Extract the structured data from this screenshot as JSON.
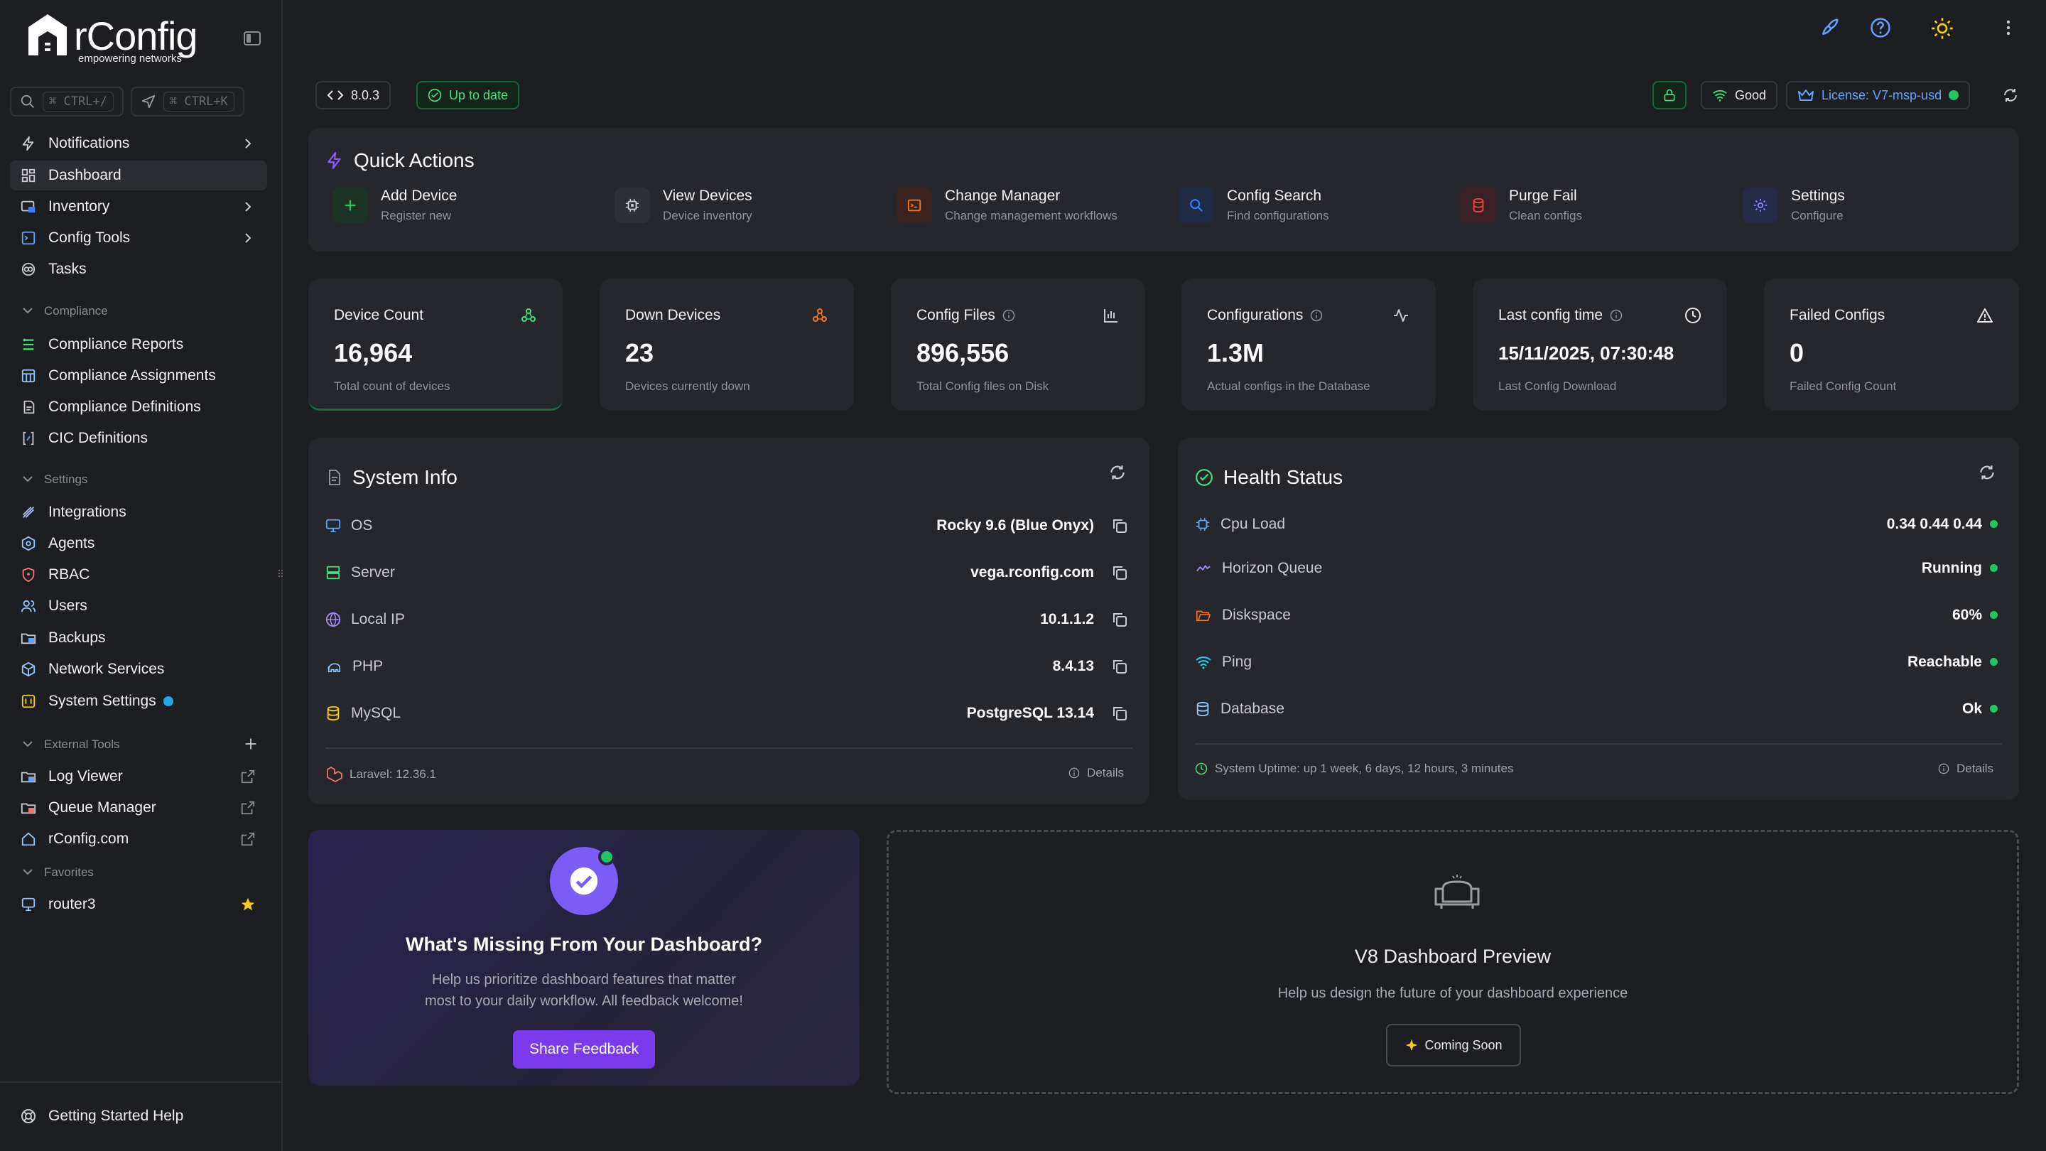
{
  "brand": {
    "name": "rConfig",
    "tagline": "empowering networks"
  },
  "search": {
    "shortcut1": "⌘ CTRL+/",
    "shortcut2": "⌘ CTRL+K"
  },
  "sidebar": {
    "items": [
      {
        "label": "Notifications",
        "icon": "bolt-icon"
      },
      {
        "label": "Dashboard",
        "icon": "grid-icon"
      },
      {
        "label": "Inventory",
        "icon": "server-icon"
      },
      {
        "label": "Config Tools",
        "icon": "terminal-icon"
      },
      {
        "label": "Tasks",
        "icon": "tasks-icon"
      }
    ],
    "compliance_header": "Compliance",
    "compliance": [
      {
        "label": "Compliance Reports"
      },
      {
        "label": "Compliance Assignments"
      },
      {
        "label": "Compliance Definitions"
      },
      {
        "label": "CIC Definitions"
      }
    ],
    "settings_header": "Settings",
    "settings": [
      {
        "label": "Integrations"
      },
      {
        "label": "Agents"
      },
      {
        "label": "RBAC"
      },
      {
        "label": "Users"
      },
      {
        "label": "Backups"
      },
      {
        "label": "Network Services"
      },
      {
        "label": "System Settings"
      }
    ],
    "external_header": "External Tools",
    "external": [
      {
        "label": "Log Viewer"
      },
      {
        "label": "Queue Manager"
      },
      {
        "label": "rConfig.com"
      }
    ],
    "favorites_header": "Favorites",
    "favorites": [
      {
        "label": "router3"
      }
    ],
    "help": "Getting Started Help"
  },
  "topbar": {
    "version": "8.0.3",
    "update_status": "Up to date",
    "signal": "Good",
    "license": "License: V7-msp-usd"
  },
  "quick_actions": {
    "title": "Quick Actions",
    "items": [
      {
        "title": "Add Device",
        "sub": "Register new",
        "color": "#22c55e"
      },
      {
        "title": "View Devices",
        "sub": "Device inventory",
        "color": "#9ca3af"
      },
      {
        "title": "Change Manager",
        "sub": "Change management workflows",
        "color": "#f97316"
      },
      {
        "title": "Config Search",
        "sub": "Find configurations",
        "color": "#3b82f6"
      },
      {
        "title": "Purge Fail",
        "sub": "Clean configs",
        "color": "#ef4444"
      },
      {
        "title": "Settings",
        "sub": "Configure",
        "color": "#6366f1"
      }
    ]
  },
  "stats": [
    {
      "label": "Device Count",
      "value": "16,964",
      "sub": "Total count of devices"
    },
    {
      "label": "Down Devices",
      "value": "23",
      "sub": "Devices currently down"
    },
    {
      "label": "Config Files",
      "value": "896,556",
      "sub": "Total Config files on Disk"
    },
    {
      "label": "Configurations",
      "value": "1.3M",
      "sub": "Actual configs in the Database"
    },
    {
      "label": "Last config time",
      "value": "15/11/2025, 07:30:48",
      "sub": "Last Config Download"
    },
    {
      "label": "Failed Configs",
      "value": "0",
      "sub": "Failed Config Count"
    }
  ],
  "system_info": {
    "title": "System Info",
    "rows": [
      {
        "label": "OS",
        "value": "Rocky 9.6 (Blue Onyx)"
      },
      {
        "label": "Server",
        "value": "vega.rconfig.com"
      },
      {
        "label": "Local IP",
        "value": "10.1.1.2"
      },
      {
        "label": "PHP",
        "value": "8.4.13"
      },
      {
        "label": "MySQL",
        "value": "PostgreSQL 13.14"
      }
    ],
    "footer": "Laravel: 12.36.1",
    "details": "Details"
  },
  "health": {
    "title": "Health Status",
    "rows": [
      {
        "label": "Cpu Load",
        "value": "0.34 0.44 0.44"
      },
      {
        "label": "Horizon Queue",
        "value": "Running"
      },
      {
        "label": "Diskspace",
        "value": "60%"
      },
      {
        "label": "Ping",
        "value": "Reachable"
      },
      {
        "label": "Database",
        "value": "Ok"
      }
    ],
    "footer": "System Uptime: up 1 week, 6 days, 12 hours, 3 minutes",
    "details": "Details"
  },
  "feedback": {
    "title": "What's Missing From Your Dashboard?",
    "line1": "Help us prioritize dashboard features that matter",
    "line2": "most to your daily workflow. All feedback welcome!",
    "button": "Share Feedback"
  },
  "preview": {
    "title": "V8 Dashboard Preview",
    "sub": "Help us design the future of your dashboard experience",
    "button": "Coming Soon"
  },
  "colors": {
    "accent": "#7c5cf6",
    "good": "#22c55e",
    "alert": "#f97316",
    "link": "#60a5fa"
  }
}
